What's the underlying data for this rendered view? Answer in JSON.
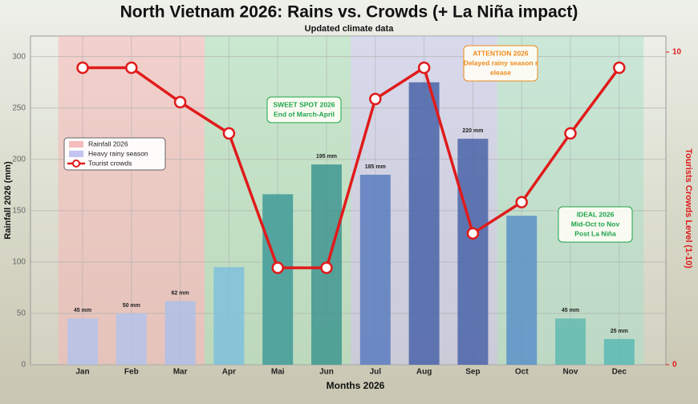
{
  "chart_data": {
    "type": "bar",
    "title": "North Vietnam 2026: Rains vs. Crowds (+ La Niña impact)",
    "subtitle": "Updated climate data",
    "x_label": "Months 2026",
    "y_label": "Rainfall  2026 (mm)",
    "y2_label": "Tourists Crowds Level (1-10)",
    "categories": [
      "Jan",
      "Feb",
      "Mar",
      "Apr",
      "Mai",
      "Jun",
      "Jul",
      "Aug",
      "Sep",
      "Oct",
      "Nov",
      "Dec"
    ],
    "ylim": [
      0,
      320
    ],
    "yticks": [
      0,
      50,
      100,
      150,
      200,
      250,
      300
    ],
    "y2lim": [
      0,
      10
    ],
    "y2ticks": [
      0,
      10
    ],
    "grid": true,
    "legend": "left",
    "series": [
      {
        "name": "Rainfall 2026",
        "type": "bar",
        "color": "#f4bcbc",
        "bar_colors": [
          "#b4c3ea",
          "#b4c3ea",
          "#aebfe8",
          "#7fbfdc",
          "#3f9a98",
          "#3f9690",
          "#5b7cc0",
          "#4a64a8",
          "#4a64a8",
          "#5a90c8",
          "#62b8b0",
          "#5ab8b4"
        ],
        "values": [
          45,
          50,
          62,
          95,
          166,
          195,
          185,
          275,
          220,
          145,
          45,
          25
        ],
        "value_labels": [
          "45 mm",
          "50 mm",
          "62 mm",
          null,
          null,
          "195 mm",
          "185 mm",
          null,
          "220 mm",
          null,
          "45 mm",
          "25 mm"
        ]
      },
      {
        "name": "Tourist crowds",
        "type": "line",
        "axis": "y2",
        "color": "#e01b1b",
        "values": [
          9.5,
          9.5,
          8.4,
          7.4,
          3.1,
          3.1,
          8.5,
          9.5,
          4.2,
          5.2,
          7.4,
          9.5
        ]
      }
    ],
    "bands": [
      {
        "start": "Jan",
        "end": "Mar",
        "color": "#f7b3b3"
      },
      {
        "start": "Apr",
        "end": "Jun",
        "color": "#a8e0b8"
      },
      {
        "start": "Jul",
        "end": "Sep",
        "color": "#c4c4f0",
        "name": "Heavy rainy season"
      },
      {
        "start": "Oct",
        "end": "Dec",
        "color": "#a8e0c8"
      }
    ],
    "annotations": [
      {
        "lines": [
          "SWEET SPOT 2026",
          "End of March-April"
        ],
        "color": "#1fa34a",
        "at": "Jun"
      },
      {
        "lines": [
          "ATTENTION 2026",
          "Delayed rainy season r",
          "elease"
        ],
        "color": "#f08a1c",
        "at": "Sep"
      },
      {
        "lines": [
          "IDEAL 2026",
          "Mid-Oct to Nov",
          "Post La Niña"
        ],
        "color": "#1fa34a",
        "at": "Nov"
      }
    ]
  }
}
